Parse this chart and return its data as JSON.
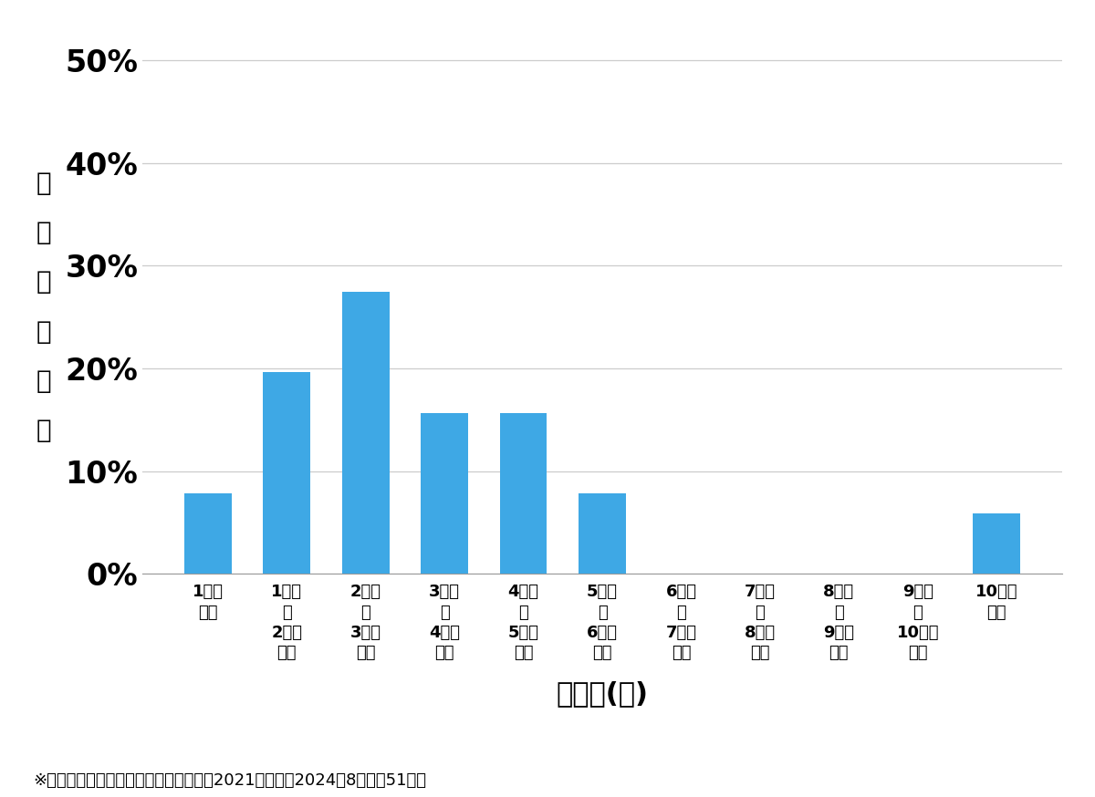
{
  "categories": [
    "1万円\n未満",
    "1万円\n～\n2万円\n未満",
    "2万円\n～\n3万円\n未満",
    "3万円\n～\n4万円\n未満",
    "4万円\n～\n5万円\n未満",
    "5万円\n～\n6万円\n未満",
    "6万円\n～\n7万円\n未満",
    "7万円\n～\n8万円\n未満",
    "8万円\n～\n9万円\n未満",
    "9万円\n～\n10万円\n未満",
    "10万円\n以上"
  ],
  "values": [
    7.84,
    19.61,
    27.45,
    15.69,
    15.69,
    7.84,
    0.0,
    0.0,
    0.0,
    0.0,
    5.88
  ],
  "bar_color": "#3ea8e5",
  "ylabel_chars": [
    "価",
    "格",
    "帯",
    "の",
    "割",
    "合"
  ],
  "xlabel": "価格帯(円)",
  "footnote": "※弾社受付の案件を対象に集計（期間：2021年１月～2024年8月、覈51件）",
  "yticks": [
    0,
    10,
    20,
    30,
    40,
    50
  ],
  "ylim": [
    0,
    52
  ],
  "background_color": "#ffffff",
  "bar_width": 0.6,
  "ytick_fontsize": 24,
  "xlabel_fontsize": 22,
  "ylabel_fontsize": 20,
  "xtick_fontsize": 13,
  "footnote_fontsize": 13
}
